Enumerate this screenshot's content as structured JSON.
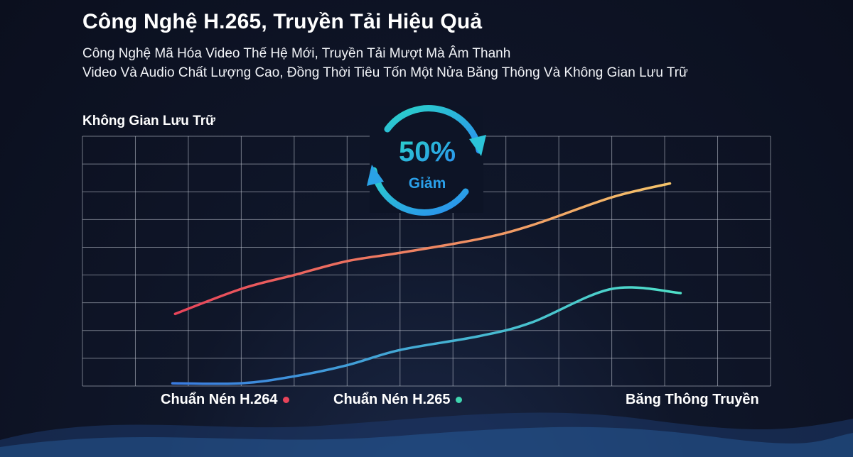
{
  "header": {
    "title": "Công Nghệ H.265, Truyền Tải Hiệu Quả",
    "subtitle_line1": "Công Nghệ Mã Hóa Video Thế Hệ Mới, Truyền Tải Mượt Mà Âm Thanh",
    "subtitle_line2": "Video Và Audio Chất Lượng Cao, Đồng Thời Tiêu Tốn Một Nửa Băng Thông Và Không Gian Lưu Trữ"
  },
  "badge": {
    "value": "50%",
    "label": "Giảm",
    "color_start": "#2bd3c8",
    "color_end": "#2a8ef0"
  },
  "colors": {
    "h264_start": "#e8445a",
    "h264_end": "#f5c46a",
    "h265_start": "#3a7be0",
    "h265_end": "#4fe0c8",
    "h264_dot": "#e8445a",
    "h265_dot": "#3fd6b0",
    "grid": "#c9ced8"
  },
  "chart_data": {
    "type": "line",
    "ylabel": "Không Gian Lưu Trữ",
    "xlabel": "Băng Thông Truyền",
    "grid": true,
    "xlim": [
      0,
      13
    ],
    "ylim": [
      0,
      9
    ],
    "series": [
      {
        "name": "Chuẩn Nén H.264",
        "x": [
          1.75,
          3,
          4,
          5,
          6,
          7.5,
          8.5,
          10,
          11.1
        ],
        "y": [
          2.6,
          3.5,
          4,
          4.5,
          4.8,
          5.3,
          5.8,
          6.8,
          7.3
        ]
      },
      {
        "name": "Chuẩn Nén H.265",
        "x": [
          1.7,
          3,
          4,
          5,
          6,
          7.5,
          8.5,
          10,
          11.3
        ],
        "y": [
          0.1,
          0.1,
          0.35,
          0.75,
          1.3,
          1.8,
          2.3,
          3.5,
          3.35
        ]
      }
    ]
  }
}
